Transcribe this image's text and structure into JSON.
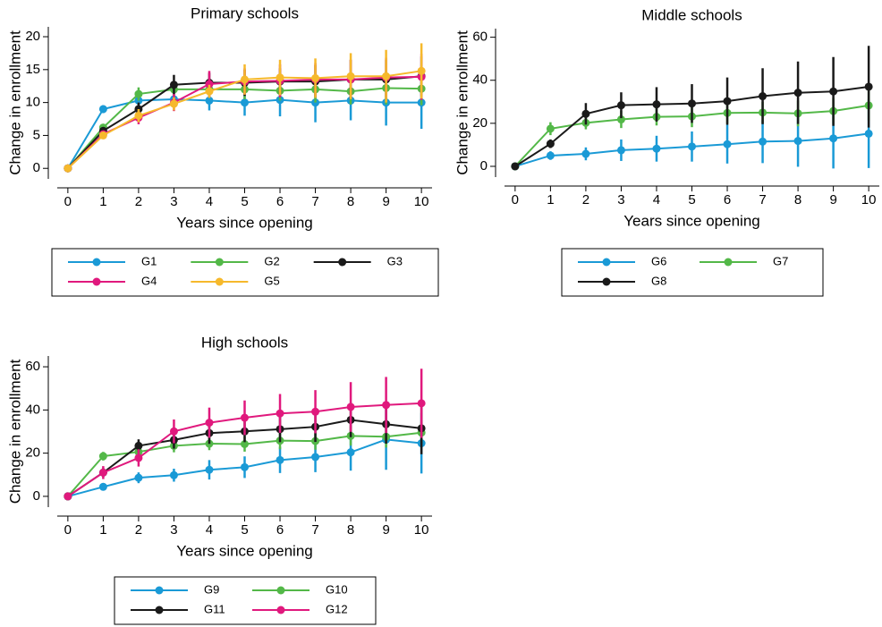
{
  "chart_data": [
    {
      "type": "line",
      "title": "Primary schools",
      "x_label": "Years since opening",
      "y_label": "Change in enrollment",
      "x": [
        0,
        1,
        2,
        3,
        4,
        5,
        6,
        7,
        8,
        9,
        10
      ],
      "xlim": [
        -0.3,
        10.3
      ],
      "xticks": [
        0,
        1,
        2,
        3,
        4,
        5,
        6,
        7,
        8,
        9,
        10
      ],
      "ylim": [
        -1.6,
        21.5
      ],
      "yticks": [
        0,
        5,
        10,
        15,
        20
      ],
      "legend_columns": 3,
      "series": [
        {
          "name": "G1",
          "color": "#1a9ad6",
          "values": [
            0,
            9,
            10.3,
            10.5,
            10.3,
            10,
            10.4,
            10,
            10.3,
            10,
            10
          ],
          "errors": [
            0,
            0.6,
            0.7,
            1,
            1.5,
            2,
            2.5,
            3,
            3,
            3.5,
            4
          ]
        },
        {
          "name": "G2",
          "color": "#53b848",
          "values": [
            0,
            6.2,
            11.3,
            12,
            12,
            12,
            11.8,
            12,
            11.7,
            12.2,
            12.1
          ],
          "errors": [
            0,
            0.5,
            1,
            1,
            1,
            1.5,
            1.5,
            2,
            2,
            2.5,
            2.5
          ]
        },
        {
          "name": "G3",
          "color": "#1a1a1a",
          "values": [
            0,
            5.7,
            9,
            12.7,
            13,
            13,
            13.2,
            13.2,
            13.5,
            13.5,
            14
          ],
          "errors": [
            0,
            0.5,
            1,
            1.5,
            1.5,
            2,
            2,
            2.5,
            3,
            3,
            3
          ]
        },
        {
          "name": "G4",
          "color": "#e0197d",
          "values": [
            0,
            5.2,
            7.7,
            10,
            12.8,
            13.2,
            13.3,
            13.5,
            13.5,
            13.8,
            13.9
          ],
          "errors": [
            0,
            0.5,
            1,
            1.3,
            2,
            2,
            2.5,
            2.5,
            3,
            3,
            3.5
          ]
        },
        {
          "name": "G5",
          "color": "#f6b92c",
          "values": [
            0,
            5,
            8,
            9.8,
            11.7,
            13.5,
            13.8,
            13.7,
            14,
            14,
            14.8
          ],
          "errors": [
            0,
            0.5,
            1,
            1,
            1,
            2.3,
            2.7,
            3,
            3.5,
            4,
            4.2
          ]
        }
      ]
    },
    {
      "type": "line",
      "title": "Middle schools",
      "x_label": "Years since opening",
      "y_label": "Change in enrollment",
      "x": [
        0,
        1,
        2,
        3,
        4,
        5,
        6,
        7,
        8,
        9,
        10
      ],
      "xlim": [
        -0.3,
        10.3
      ],
      "xticks": [
        0,
        1,
        2,
        3,
        4,
        5,
        6,
        7,
        8,
        9,
        10
      ],
      "ylim": [
        -5,
        64
      ],
      "yticks": [
        0,
        20,
        40,
        60
      ],
      "legend_columns": 2,
      "series": [
        {
          "name": "G6",
          "color": "#1a9ad6",
          "values": [
            0,
            5,
            5.8,
            7.5,
            8.2,
            9.2,
            10.3,
            11.5,
            11.8,
            13,
            15.2
          ],
          "errors": [
            0,
            2,
            3,
            5,
            6,
            7,
            9,
            10,
            12,
            14,
            16
          ]
        },
        {
          "name": "G7",
          "color": "#53b848",
          "values": [
            0,
            17.5,
            20.2,
            21.8,
            23,
            23.2,
            24.8,
            25,
            24.6,
            25.7,
            28.3
          ],
          "errors": [
            0,
            3,
            3,
            4,
            4,
            5,
            5,
            5,
            6,
            6,
            7
          ]
        },
        {
          "name": "G8",
          "color": "#1a1a1a",
          "values": [
            0,
            10.5,
            24.4,
            28.4,
            28.8,
            29.2,
            30.3,
            32.6,
            34.2,
            34.8,
            37
          ],
          "errors": [
            0,
            2,
            5,
            6,
            8,
            9,
            11,
            13,
            14.5,
            16,
            19
          ]
        }
      ]
    },
    {
      "type": "line",
      "title": "High schools",
      "x_label": "Years since opening",
      "y_label": "Change in enrollment",
      "x": [
        0,
        1,
        2,
        3,
        4,
        5,
        6,
        7,
        8,
        9,
        10
      ],
      "xlim": [
        -0.3,
        10.3
      ],
      "xticks": [
        0,
        1,
        2,
        3,
        4,
        5,
        6,
        7,
        8,
        9,
        10
      ],
      "ylim": [
        -5,
        65
      ],
      "yticks": [
        0,
        20,
        40,
        60
      ],
      "legend_columns": 2,
      "series": [
        {
          "name": "G9",
          "color": "#1a9ad6",
          "values": [
            0,
            4.4,
            8.6,
            9.8,
            12.3,
            13.5,
            16.8,
            18.2,
            20.4,
            26.3,
            24.6
          ],
          "errors": [
            0,
            1,
            2.5,
            3,
            4.5,
            5,
            6,
            7,
            8.5,
            14,
            14
          ]
        },
        {
          "name": "G10",
          "color": "#53b848",
          "values": [
            0,
            18.6,
            20.6,
            23.4,
            24.4,
            24.2,
            25.8,
            25.6,
            28,
            27.6,
            29.5
          ],
          "errors": [
            0,
            2,
            2,
            3,
            3,
            3.5,
            4,
            4,
            4.5,
            5,
            5
          ]
        },
        {
          "name": "G11",
          "color": "#1a1a1a",
          "values": [
            0,
            11,
            23.4,
            26.1,
            29.3,
            30.1,
            31.1,
            32.2,
            35.4,
            33.4,
            31.5
          ],
          "errors": [
            0,
            2,
            3,
            4,
            5,
            5,
            6,
            7,
            8,
            9,
            12
          ]
        },
        {
          "name": "G12",
          "color": "#e0197d",
          "values": [
            0,
            11,
            17.8,
            30.1,
            34.1,
            36.4,
            38.4,
            39.2,
            41.4,
            42.3,
            43.1
          ],
          "errors": [
            0,
            3,
            4,
            5.5,
            7,
            8,
            9,
            10,
            11.5,
            13,
            16
          ]
        }
      ]
    }
  ]
}
